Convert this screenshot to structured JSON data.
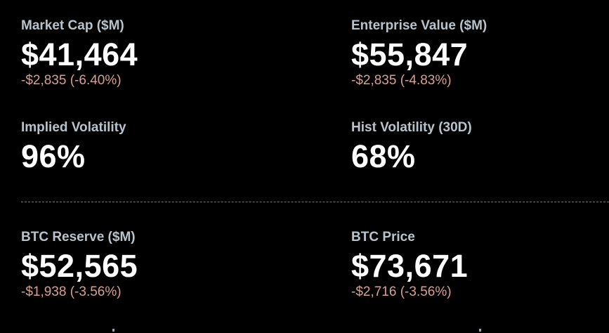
{
  "metrics": [
    {
      "label": "Market Cap ($M)",
      "value": "$41,464",
      "change": "-$2,835 (-6.40%)"
    },
    {
      "label": "Enterprise Value ($M)",
      "value": "$55,847",
      "change": "-$2,835 (-4.83%)"
    },
    {
      "label": "Implied Volatility",
      "value": "96%"
    },
    {
      "label": "Hist Volatility (30D)",
      "value": "68%"
    },
    {
      "label": "BTC Reserve ($M)",
      "value": "$52,565",
      "change": "-$1,938 (-3.56%)"
    },
    {
      "label": "BTC Price",
      "value": "$73,671",
      "change": "-$2,716 (-3.56%)"
    }
  ],
  "colors": {
    "background": "#000000",
    "label": "#b9c3cc",
    "value": "#ffffff",
    "negative_change": "#d9a08f",
    "divider": "#7a7a7a"
  }
}
